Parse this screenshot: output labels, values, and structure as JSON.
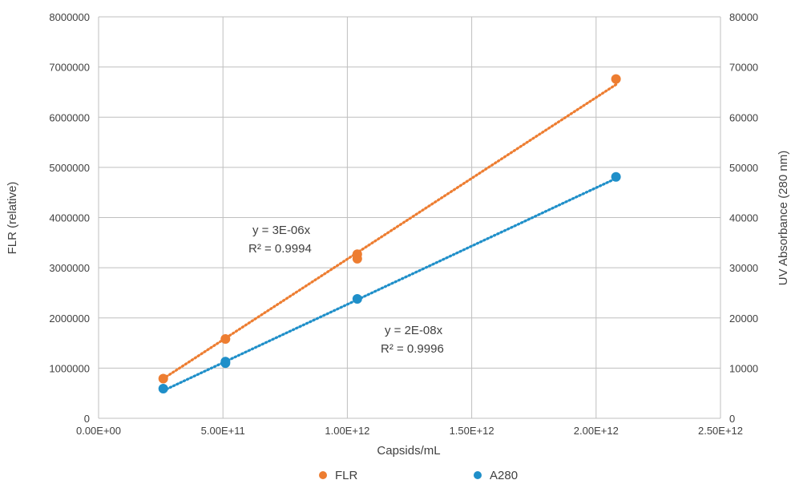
{
  "chart_data": {
    "type": "scatter",
    "title": "",
    "xlabel": "Capsids/mL",
    "ylabel": "FLR (relative)",
    "y2label": "UV Absorbance (280 nm)",
    "xlim": [
      0,
      2500000000000.0
    ],
    "ylim": [
      0,
      8000000
    ],
    "y2lim": [
      0,
      80000
    ],
    "grid": true,
    "legend_position": "bottom",
    "x_ticks": [
      "0.00E+00",
      "5.00E+11",
      "1.00E+12",
      "1.50E+12",
      "2.00E+12",
      "2.50E+12"
    ],
    "y_ticks": [
      "0",
      "1000000",
      "2000000",
      "3000000",
      "4000000",
      "5000000",
      "6000000",
      "7000000",
      "8000000"
    ],
    "y2_ticks": [
      "0",
      "10000",
      "20000",
      "30000",
      "40000",
      "50000",
      "60000",
      "70000",
      "80000"
    ],
    "series": [
      {
        "name": "FLR",
        "axis": "left",
        "color": "#ED7D31",
        "points": [
          {
            "x": 260000000000.0,
            "y": 790000
          },
          {
            "x": 510000000000.0,
            "y": 1580000
          },
          {
            "x": 1040000000000.0,
            "y": 3180000
          },
          {
            "x": 1040000000000.0,
            "y": 3270000
          },
          {
            "x": 2080000000000.0,
            "y": 6760000
          }
        ],
        "trendline": {
          "x_start": 260000000000.0,
          "x_end": 2080000000000.0,
          "y_start": 790000,
          "y_end": 6650000
        },
        "equation": "y = 3E-06x",
        "r2": "R² = 0.9994"
      },
      {
        "name": "A280",
        "axis": "right",
        "color": "#1F8FC9",
        "points": [
          {
            "x": 260000000000.0,
            "y": 5900
          },
          {
            "x": 510000000000.0,
            "y": 11000
          },
          {
            "x": 510000000000.0,
            "y": 11300
          },
          {
            "x": 1040000000000.0,
            "y": 23800
          },
          {
            "x": 2080000000000.0,
            "y": 48100
          }
        ],
        "trendline": {
          "x_start": 260000000000.0,
          "x_end": 2080000000000.0,
          "y_start": 5500,
          "y_end": 47800
        },
        "equation": "y = 2E-08x",
        "r2": "R² = 0.9996"
      }
    ]
  }
}
